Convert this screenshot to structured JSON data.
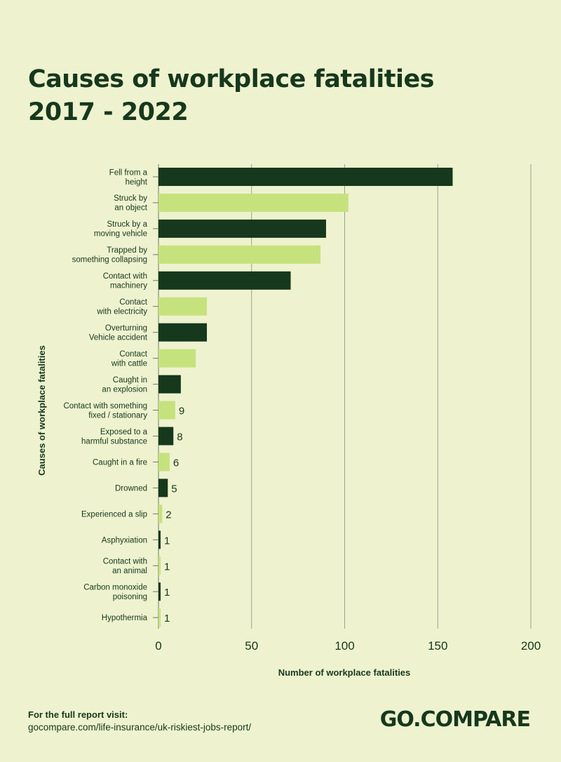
{
  "title_lines": [
    "Causes of workplace fatalities",
    "2017 - 2022"
  ],
  "footer": {
    "label": "For  the full report visit:",
    "link": "gocompare.com/life-insurance/uk-riskiest-jobs-report/"
  },
  "logo_text": "GO.COMPARE",
  "colors": {
    "background": "#eef2cf",
    "dark": "#16381c",
    "light": "#c6e27d",
    "grid": "#9aa58a"
  },
  "chart_data": {
    "type": "bar",
    "orientation": "horizontal",
    "xlabel": "Number of workplace fatalities",
    "ylabel": "Causes of workplace fatalities",
    "xlim": [
      0,
      200
    ],
    "xticks": [
      0,
      50,
      100,
      150,
      200
    ],
    "grid": true,
    "categories": [
      [
        "Fell from a",
        "height"
      ],
      [
        "Struck by",
        "an object"
      ],
      [
        "Struck by a",
        "moving vehicle"
      ],
      [
        "Trapped by",
        "something collapsing"
      ],
      [
        "Contact with",
        "machinery"
      ],
      [
        "Contact",
        "with electricity"
      ],
      [
        "Overturning",
        "Vehicle accident"
      ],
      [
        "Contact",
        "with cattle"
      ],
      [
        "Caught in",
        "an explosion"
      ],
      [
        "Contact with something",
        "fixed / stationary"
      ],
      [
        "Exposed to a",
        "harmful substance"
      ],
      [
        "Caught in a fire"
      ],
      [
        "Drowned"
      ],
      [
        "Experienced a slip"
      ],
      [
        "Asphyxiation"
      ],
      [
        "Contact with",
        "an animal"
      ],
      [
        "Carbon monoxide",
        "poisoning"
      ],
      [
        "Hypothermia"
      ]
    ],
    "values": [
      158,
      102,
      90,
      87,
      71,
      26,
      26,
      20,
      12,
      9,
      8,
      6,
      5,
      2,
      1,
      1,
      1,
      1
    ],
    "value_labels": [
      "",
      "",
      "",
      "",
      "",
      "",
      "",
      "",
      "",
      "9",
      "8",
      "6",
      "5",
      "2",
      "1",
      "1",
      "1",
      "1"
    ],
    "bar_colors": [
      "dark",
      "light",
      "dark",
      "light",
      "dark",
      "light",
      "dark",
      "light",
      "dark",
      "light",
      "dark",
      "light",
      "dark",
      "light",
      "dark",
      "light",
      "dark",
      "light"
    ]
  }
}
